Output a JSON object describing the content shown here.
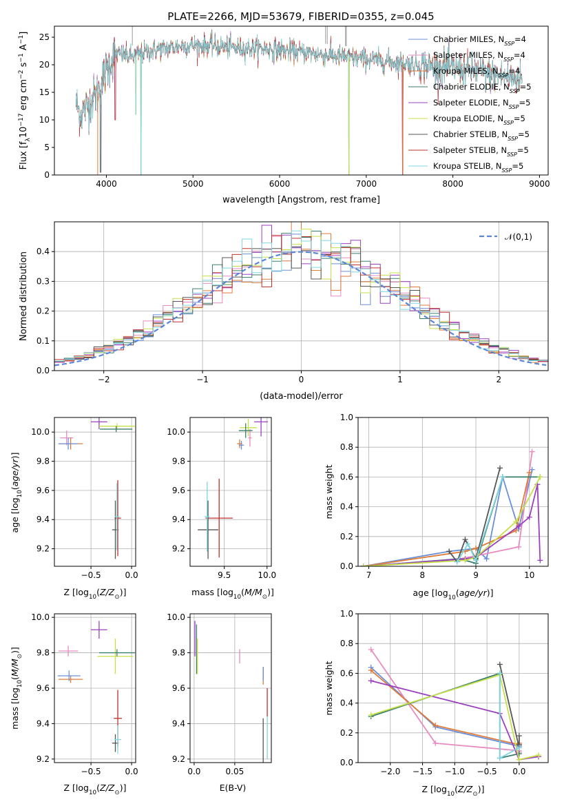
{
  "figure": {
    "title": "PLATE=2266, MJD=53679, FIBERID=0355, z=0.045"
  },
  "chart_data": [
    {
      "id": "spectrum",
      "type": "line",
      "xlabel": "wavelength [Angstrom, rest frame]",
      "ylabel": "Flux [f_λ 10^-17 erg cm^-2 s^-1 A^-1]",
      "xlim": [
        3400,
        9100
      ],
      "ylim": [
        0,
        27
      ],
      "xticks": [
        4000,
        5000,
        6000,
        7000,
        8000,
        9000
      ],
      "yticks": [
        0,
        5,
        10,
        15,
        20,
        25
      ],
      "grid": false,
      "legend_placement": "top-right",
      "series": [
        {
          "name": "Chabrier MILES, N_SSP=4",
          "color": "#6a8fd8"
        },
        {
          "name": "Salpeter MILES, N_SSP=4",
          "color": "#e88ac0"
        },
        {
          "name": "Kroupa MILES, N_SSP=4",
          "color": "#e07b39"
        },
        {
          "name": "Chabrier ELODIE, N_SSP=5",
          "color": "#3a7d6b"
        },
        {
          "name": "Salpeter ELODIE, N_SSP=5",
          "color": "#9a3fbf"
        },
        {
          "name": "Kroupa ELODIE, N_SSP=5",
          "color": "#c6e04a"
        },
        {
          "name": "Chabrier STELIB, N_SSP=5",
          "color": "#555555"
        },
        {
          "name": "Salpeter STELIB, N_SSP=5",
          "color": "#c0302a"
        },
        {
          "name": "Kroupa STELIB, N_SSP=5",
          "color": "#7fd6e0"
        }
      ],
      "data_profile": {
        "x": [
          3650,
          3700,
          3800,
          3900,
          4000,
          4100,
          4300,
          4500,
          4700,
          4900,
          5200,
          5500,
          5800,
          6100,
          6400,
          6700,
          7000,
          7300,
          7600,
          7900,
          8200,
          8500,
          8800
        ],
        "y": [
          13,
          11,
          13,
          15,
          19,
          22,
          21.5,
          22.5,
          23,
          23.5,
          23.5,
          23,
          23,
          22.5,
          22,
          21.5,
          21,
          20.5,
          20,
          19.5,
          19,
          18,
          17.5
        ]
      },
      "absorption_features": [
        {
          "x": 3933,
          "y": 0.5
        },
        {
          "x": 4102,
          "y": 10
        },
        {
          "x": 4340,
          "y": 11
        },
        {
          "x": 4400,
          "y": 0
        },
        {
          "x": 6800,
          "y": 0
        },
        {
          "x": 7420,
          "y": 0
        }
      ]
    },
    {
      "id": "residuals",
      "type": "line",
      "xlabel": "(data-model)/error",
      "ylabel": "Normed distribution",
      "xlim": [
        -2.5,
        2.5
      ],
      "ylim": [
        0,
        0.5
      ],
      "xticks": [
        -2,
        -1,
        0,
        1,
        2
      ],
      "yticks": [
        0.0,
        0.1,
        0.2,
        0.3,
        0.4
      ],
      "grid": true,
      "legend_placement": "top-right",
      "reference_label": "𝒩(0,1)",
      "reference_color": "#5b85d8"
    },
    {
      "id": "age_vs_Z",
      "type": "scatter",
      "xlabel": "Z [log10(Z/Z⊙)]",
      "ylabel": "age [log10(age/yr)]",
      "xlim": [
        -0.95,
        0.05
      ],
      "ylim": [
        9.08,
        10.1
      ],
      "xticks": [
        -0.5,
        0.0
      ],
      "yticks": [
        9.2,
        9.4,
        9.6,
        9.8,
        10.0
      ],
      "grid": true,
      "points": [
        {
          "x": -0.8,
          "y": 9.96,
          "xerr": 0.08,
          "yerr": 0.05,
          "color": "#e88ac0"
        },
        {
          "x": -0.75,
          "y": 9.92,
          "xerr": 0.15,
          "yerr": 0.04,
          "color": "#e07b39"
        },
        {
          "x": -0.78,
          "y": 9.92,
          "xerr": 0.12,
          "yerr": 0.04,
          "color": "#6a8fd8"
        },
        {
          "x": -0.4,
          "y": 10.07,
          "xerr": 0.1,
          "yerr": 0.05,
          "color": "#9a3fbf"
        },
        {
          "x": -0.18,
          "y": 10.04,
          "xerr": 0.22,
          "yerr": 0.02,
          "color": "#c6e04a"
        },
        {
          "x": -0.19,
          "y": 10.02,
          "xerr": 0.2,
          "yerr": 0.02,
          "color": "#3a7d6b"
        },
        {
          "x": -0.17,
          "y": 9.41,
          "xerr": 0.04,
          "yerr": 0.26,
          "color": "#c0302a"
        },
        {
          "x": -0.2,
          "y": 9.33,
          "xerr": 0.04,
          "yerr": 0.2,
          "color": "#555555"
        },
        {
          "x": -0.18,
          "y": 9.42,
          "xerr": 0.03,
          "yerr": 0.23,
          "color": "#7fd6e0"
        }
      ]
    },
    {
      "id": "age_vs_mass",
      "type": "scatter",
      "xlabel": "mass [log10(M/M⊙)]",
      "ylabel": "",
      "xlim": [
        9.1,
        10.05
      ],
      "ylim": [
        9.08,
        10.1
      ],
      "xticks": [
        9.5,
        10.0
      ],
      "yticks": [
        9.2,
        9.4,
        9.6,
        9.8,
        10.0
      ],
      "grid": true,
      "points": [
        {
          "x": 9.68,
          "y": 9.92,
          "xerr": 0.03,
          "yerr": 0.03,
          "color": "#e07b39"
        },
        {
          "x": 9.7,
          "y": 9.91,
          "xerr": 0.03,
          "yerr": 0.03,
          "color": "#6a8fd8"
        },
        {
          "x": 9.8,
          "y": 9.96,
          "xerr": 0.02,
          "yerr": 0.06,
          "color": "#e88ac0"
        },
        {
          "x": 9.93,
          "y": 10.07,
          "xerr": 0.08,
          "yerr": 0.1,
          "color": "#9a3fbf"
        },
        {
          "x": 9.78,
          "y": 10.03,
          "xerr": 0.1,
          "yerr": 0.06,
          "color": "#c6e04a"
        },
        {
          "x": 9.75,
          "y": 10.01,
          "xerr": 0.08,
          "yerr": 0.05,
          "color": "#3a7d6b"
        },
        {
          "x": 9.44,
          "y": 9.41,
          "xerr": 0.16,
          "yerr": 0.27,
          "color": "#c0302a"
        },
        {
          "x": 9.31,
          "y": 9.33,
          "xerr": 0.12,
          "yerr": 0.2,
          "color": "#555555"
        },
        {
          "x": 9.3,
          "y": 9.42,
          "xerr": 0.03,
          "yerr": 0.24,
          "color": "#7fd6e0"
        }
      ]
    },
    {
      "id": "mass_weight_vs_age",
      "type": "line",
      "xlabel": "age [log10(age/yr)]",
      "ylabel": "mass weight",
      "xlim": [
        6.8,
        10.35
      ],
      "ylim": [
        0.0,
        1.0
      ],
      "xticks": [
        7,
        8,
        9,
        10
      ],
      "yticks": [
        0.0,
        0.2,
        0.4,
        0.6,
        0.8,
        1.0
      ],
      "grid": true,
      "series": [
        {
          "name": "Chabrier MILES",
          "color": "#6a8fd8",
          "x": [
            6.9,
            8.5,
            9.0,
            9.2,
            9.5,
            9.8,
            10.05
          ],
          "y": [
            0.0,
            0.1,
            0.12,
            0.05,
            0.6,
            0.25,
            0.65
          ]
        },
        {
          "name": "Salpeter MILES",
          "color": "#e88ac0",
          "x": [
            6.9,
            8.7,
            9.0,
            9.8,
            10.05
          ],
          "y": [
            0.0,
            0.05,
            0.07,
            0.13,
            0.77
          ]
        },
        {
          "name": "Kroupa MILES",
          "color": "#e07b39",
          "x": [
            6.9,
            8.8,
            9.0,
            9.75,
            10.0
          ],
          "y": [
            0.0,
            0.1,
            0.12,
            0.24,
            0.63
          ]
        },
        {
          "name": "Chabrier ELODIE",
          "color": "#3a7d6b",
          "x": [
            6.9,
            8.7,
            9.0,
            9.5,
            10.2
          ],
          "y": [
            0.0,
            0.05,
            0.02,
            0.6,
            0.6
          ]
        },
        {
          "name": "Salpeter ELODIE",
          "color": "#9a3fbf",
          "x": [
            6.9,
            8.8,
            9.0,
            9.8,
            10.0,
            10.15,
            10.2
          ],
          "y": [
            0.0,
            0.05,
            0.06,
            0.27,
            0.33,
            0.55,
            0.04
          ]
        },
        {
          "name": "Kroupa ELODIE",
          "color": "#c6e04a",
          "x": [
            6.9,
            8.8,
            9.0,
            9.75,
            10.2
          ],
          "y": [
            0.0,
            0.04,
            0.06,
            0.3,
            0.6
          ]
        },
        {
          "name": "Chabrier STELIB",
          "color": "#555555",
          "x": [
            8.5,
            8.65,
            8.8,
            9.0,
            9.45
          ],
          "y": [
            0.1,
            0.03,
            0.18,
            0.05,
            0.66
          ]
        },
        {
          "name": "Kroupa STELIB",
          "color": "#7fd6e0",
          "x": [
            8.65,
            8.85,
            9.0,
            9.5
          ],
          "y": [
            0.03,
            0.15,
            0.04,
            0.6
          ]
        }
      ]
    },
    {
      "id": "mass_vs_Z",
      "type": "scatter",
      "xlabel": "Z [log10(Z/Z⊙)]",
      "ylabel": "mass [log10(M/M⊙)]",
      "xlim": [
        -0.95,
        0.05
      ],
      "ylim": [
        9.18,
        10.02
      ],
      "xticks": [
        -0.5,
        0.0
      ],
      "yticks": [
        9.2,
        9.4,
        9.6,
        9.8,
        10.0
      ],
      "grid": true,
      "points": [
        {
          "x": -0.78,
          "y": 9.81,
          "xerr": 0.12,
          "yerr": 0.03,
          "color": "#e88ac0"
        },
        {
          "x": -0.75,
          "y": 9.65,
          "xerr": 0.15,
          "yerr": 0.02,
          "color": "#e07b39"
        },
        {
          "x": -0.77,
          "y": 9.67,
          "xerr": 0.14,
          "yerr": 0.03,
          "color": "#6a8fd8"
        },
        {
          "x": -0.4,
          "y": 9.93,
          "xerr": 0.1,
          "yerr": 0.05,
          "color": "#9a3fbf"
        },
        {
          "x": -0.2,
          "y": 9.78,
          "xerr": 0.22,
          "yerr": 0.1,
          "color": "#c6e04a"
        },
        {
          "x": -0.18,
          "y": 9.8,
          "xerr": 0.22,
          "yerr": 0.02,
          "color": "#3a7d6b"
        },
        {
          "x": -0.17,
          "y": 9.43,
          "xerr": 0.05,
          "yerr": 0.16,
          "color": "#c0302a"
        },
        {
          "x": -0.2,
          "y": 9.29,
          "xerr": 0.04,
          "yerr": 0.05,
          "color": "#555555"
        },
        {
          "x": -0.17,
          "y": 9.31,
          "xerr": 0.04,
          "yerr": 0.08,
          "color": "#7fd6e0"
        }
      ]
    },
    {
      "id": "mass_vs_ebv",
      "type": "scatter",
      "xlabel": "E(B-V)",
      "ylabel": "",
      "xlim": [
        -0.005,
        0.095
      ],
      "ylim": [
        9.18,
        10.02
      ],
      "xticks": [
        0.0,
        0.05
      ],
      "yticks": [
        9.2,
        9.4,
        9.6,
        9.8,
        10.0
      ],
      "grid": true,
      "points": [
        {
          "x": 0.001,
          "y": 9.88,
          "xerr": 0.0,
          "yerr": 0.1,
          "color": "#9a3fbf"
        },
        {
          "x": 0.003,
          "y": 9.82,
          "xerr": 0.0,
          "yerr": 0.14,
          "color": "#3a7d6b"
        },
        {
          "x": 0.004,
          "y": 9.78,
          "xerr": 0.0,
          "yerr": 0.1,
          "color": "#c6e04a"
        },
        {
          "x": 0.056,
          "y": 9.78,
          "xerr": 0.0,
          "yerr": 0.04,
          "color": "#e88ac0"
        },
        {
          "x": 0.085,
          "y": 9.67,
          "xerr": 0.0,
          "yerr": 0.05,
          "color": "#e07b39"
        },
        {
          "x": 0.085,
          "y": 9.68,
          "xerr": 0.0,
          "yerr": 0.04,
          "color": "#6a8fd8"
        },
        {
          "x": 0.09,
          "y": 9.52,
          "xerr": 0.0,
          "yerr": 0.08,
          "color": "#c0302a"
        },
        {
          "x": 0.085,
          "y": 9.29,
          "xerr": 0.0,
          "yerr": 0.14,
          "color": "#555555"
        },
        {
          "x": 0.09,
          "y": 9.32,
          "xerr": 0.0,
          "yerr": 0.12,
          "color": "#7fd6e0"
        }
      ]
    },
    {
      "id": "mass_weight_vs_Z",
      "type": "line",
      "xlabel": "Z [log10(Z/Z⊙)]",
      "ylabel": "mass weight",
      "xlim": [
        -2.5,
        0.45
      ],
      "ylim": [
        0.0,
        1.0
      ],
      "xticks": [
        -2.0,
        -1.5,
        -1.0,
        -0.5,
        0.0
      ],
      "yticks": [
        0.0,
        0.2,
        0.4,
        0.6,
        0.8,
        1.0
      ],
      "grid": true,
      "series": [
        {
          "name": "Chabrier MILES",
          "color": "#6a8fd8",
          "x": [
            -2.3,
            -1.3,
            0.0,
            0.0
          ],
          "y": [
            0.64,
            0.24,
            0.11,
            0.1
          ]
        },
        {
          "name": "Salpeter MILES",
          "color": "#e88ac0",
          "x": [
            -2.3,
            -1.3,
            0.0,
            0.0
          ],
          "y": [
            0.76,
            0.13,
            0.08,
            0.07
          ]
        },
        {
          "name": "Kroupa MILES",
          "color": "#e07b39",
          "x": [
            -2.3,
            -1.3,
            0.0,
            0.0
          ],
          "y": [
            0.62,
            0.25,
            0.12,
            0.13
          ]
        },
        {
          "name": "Chabrier ELODIE",
          "color": "#3a7d6b",
          "x": [
            -2.3,
            -0.3,
            -0.3,
            0.0
          ],
          "y": [
            0.31,
            0.6,
            0.03,
            0.06
          ]
        },
        {
          "name": "Salpeter ELODIE",
          "color": "#9a3fbf",
          "x": [
            -2.3,
            -0.3,
            0.0,
            0.3
          ],
          "y": [
            0.55,
            0.33,
            0.02,
            0.04
          ]
        },
        {
          "name": "Kroupa ELODIE",
          "color": "#c6e04a",
          "x": [
            -2.3,
            -0.3,
            0.0,
            0.3
          ],
          "y": [
            0.32,
            0.59,
            0.02,
            0.05
          ]
        },
        {
          "name": "Chabrier STELIB",
          "color": "#555555",
          "x": [
            -0.3,
            0.0,
            0.0,
            0.0
          ],
          "y": [
            0.66,
            0.1,
            0.18,
            0.12
          ]
        },
        {
          "name": "Kroupa STELIB",
          "color": "#7fd6e0",
          "x": [
            -0.3,
            -0.3,
            0.0
          ],
          "y": [
            0.6,
            0.03,
            0.1
          ]
        }
      ]
    }
  ]
}
